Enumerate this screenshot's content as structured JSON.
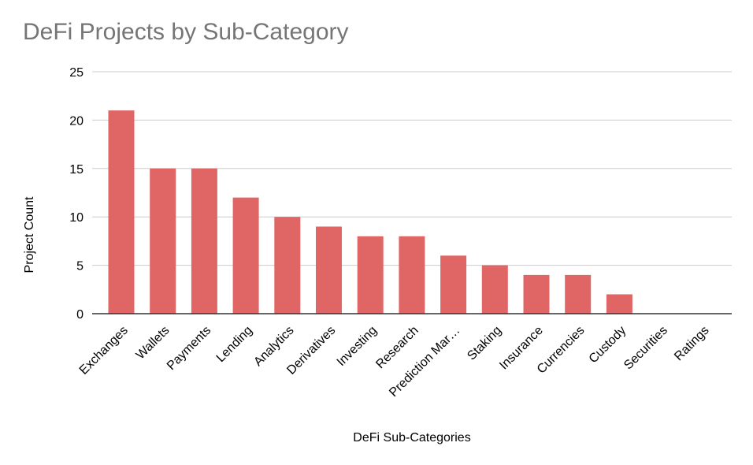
{
  "chart_data": {
    "type": "bar",
    "title": "DeFi Projects by Sub-Category",
    "xlabel": "DeFi Sub-Categories",
    "ylabel": "Project Count",
    "ylim": [
      0,
      25
    ],
    "yticks": [
      0,
      5,
      10,
      15,
      20,
      25
    ],
    "grid": true,
    "legend": "none",
    "bar_color": "#e06666",
    "categories": [
      "Exchanges",
      "Wallets",
      "Payments",
      "Lending",
      "Analytics",
      "Derivatives",
      "Investing",
      "Research",
      "Prediction Mar…",
      "Staking",
      "Insurance",
      "Currencies",
      "Custody",
      "Securities",
      "Ratings"
    ],
    "values": [
      21,
      15,
      15,
      12,
      10,
      9,
      8,
      8,
      6,
      5,
      4,
      4,
      2,
      0,
      0
    ]
  }
}
